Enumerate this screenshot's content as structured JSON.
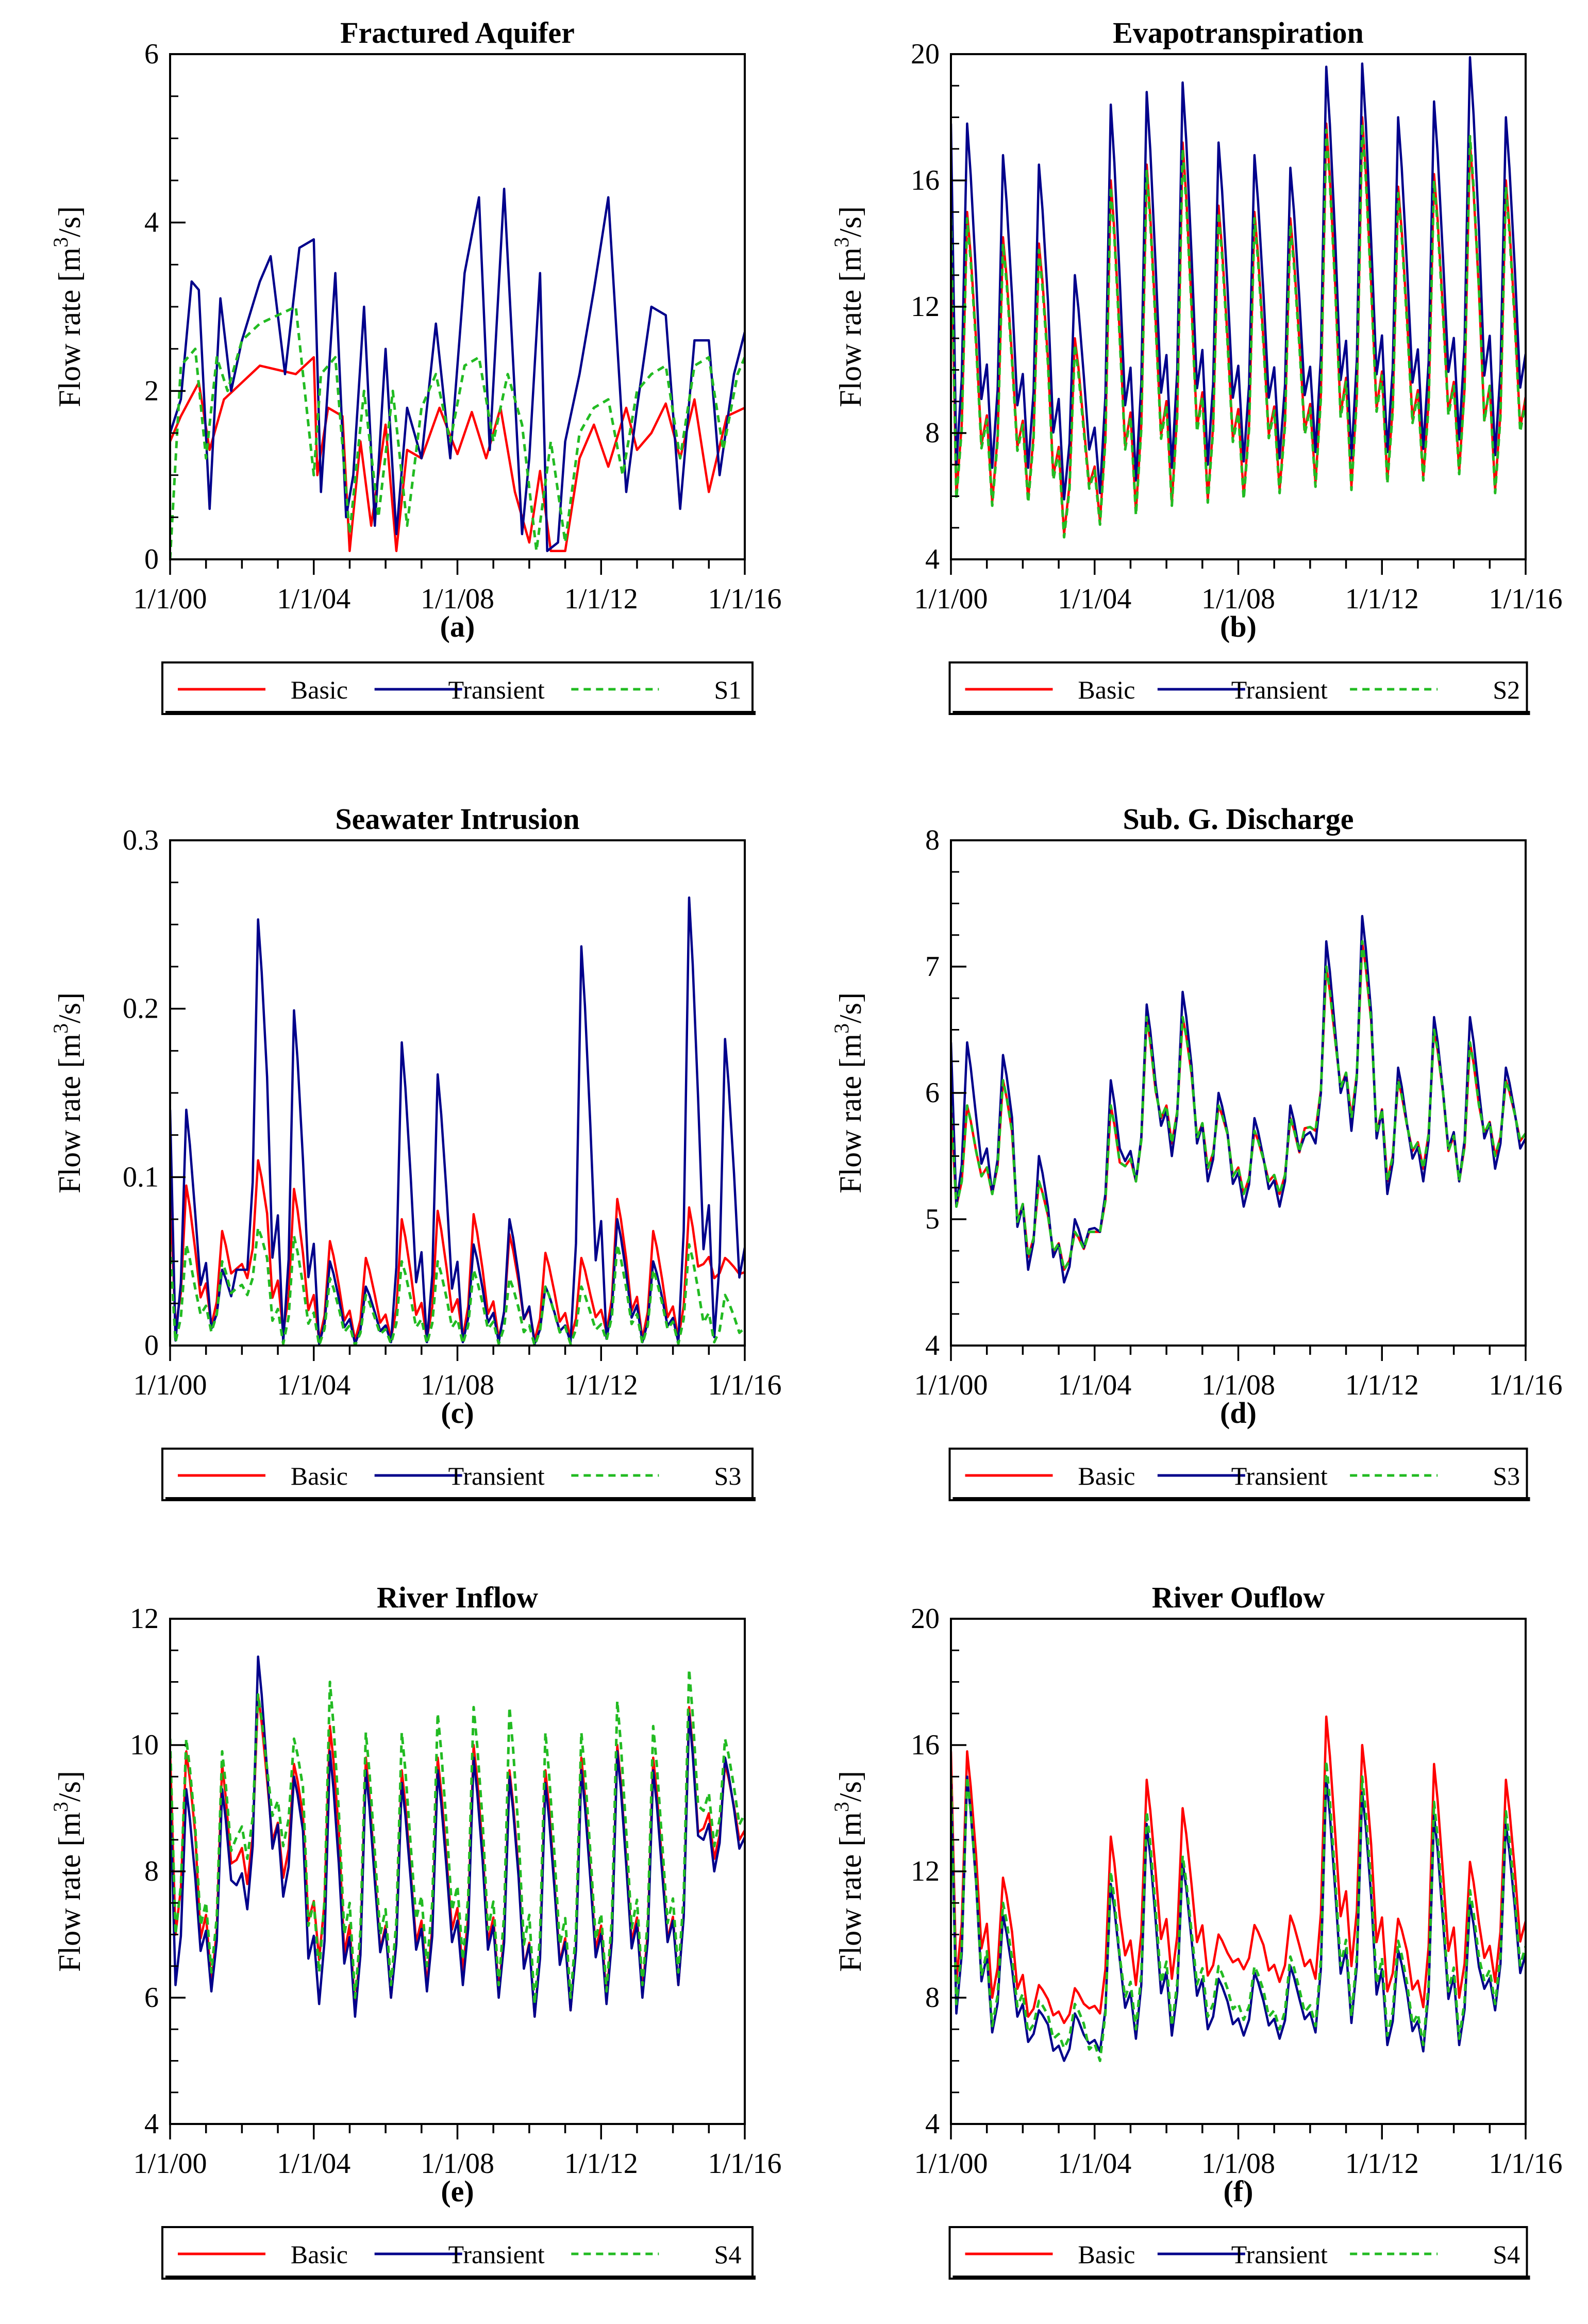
{
  "figure": {
    "time_ticks": [
      "1/1/00",
      "1/1/04",
      "1/1/08",
      "1/1/12",
      "1/1/16"
    ],
    "ylabel": "Flow rate [m3/s]",
    "ylabel_main": "Flow rate [m",
    "ylabel_sup": "3",
    "ylabel_tail": "/s]",
    "series_colors": {
      "Basic": "#ff0000",
      "Transient": "#00008b",
      "S": "#22bb22"
    }
  },
  "chart_data": [
    {
      "id": "a",
      "type": "line",
      "title": "Fractured Aquifer",
      "panel_label": "(a)",
      "xlabel": "",
      "ylabel": "Flow rate [m3/s]",
      "x_range": [
        "2000-01-01",
        "2016-01-01"
      ],
      "x_ticks": [
        "1/1/00",
        "1/1/04",
        "1/1/08",
        "1/1/12",
        "1/1/16"
      ],
      "ylim": [
        0,
        6
      ],
      "y_ticks": [
        "0",
        "2",
        "4",
        "6"
      ],
      "y_step": 2,
      "legend": [
        "Basic",
        "Transient",
        "S1"
      ],
      "legend_position": "bottom",
      "series": [
        {
          "name": "Basic",
          "x": [
            2000.0,
            2000.3,
            2000.8,
            2001.1,
            2001.5,
            2002.0,
            2002.5,
            2003.0,
            2003.5,
            2004.0,
            2004.1,
            2004.4,
            2004.8,
            2005.0,
            2005.3,
            2005.6,
            2006.0,
            2006.3,
            2006.6,
            2007.0,
            2007.5,
            2008.0,
            2008.4,
            2008.8,
            2009.2,
            2009.6,
            2010.0,
            2010.3,
            2010.6,
            2011.0,
            2011.4,
            2011.8,
            2012.2,
            2012.7,
            2013.0,
            2013.4,
            2013.8,
            2014.2,
            2014.6,
            2015.0,
            2015.5,
            2016.0
          ],
          "values": [
            1.4,
            1.7,
            2.1,
            1.3,
            1.9,
            2.1,
            2.3,
            2.25,
            2.2,
            2.4,
            1.0,
            1.8,
            1.7,
            0.1,
            1.4,
            0.4,
            1.6,
            0.1,
            1.3,
            1.2,
            1.8,
            1.25,
            1.75,
            1.2,
            1.8,
            0.8,
            0.2,
            1.05,
            0.1,
            0.1,
            1.2,
            1.6,
            1.1,
            1.8,
            1.3,
            1.5,
            1.85,
            1.2,
            1.9,
            0.8,
            1.7,
            1.8
          ]
        },
        {
          "name": "Transient",
          "x": [
            2000.0,
            2000.3,
            2000.6,
            2000.8,
            2001.1,
            2001.4,
            2001.7,
            2002.0,
            2002.5,
            2002.8,
            2003.2,
            2003.6,
            2004.0,
            2004.2,
            2004.6,
            2004.9,
            2005.1,
            2005.4,
            2005.7,
            2006.0,
            2006.3,
            2006.6,
            2007.0,
            2007.4,
            2007.8,
            2008.2,
            2008.6,
            2008.9,
            2009.3,
            2009.8,
            2010.0,
            2010.3,
            2010.5,
            2010.8,
            2011.0,
            2011.4,
            2011.8,
            2012.2,
            2012.7,
            2013.0,
            2013.4,
            2013.8,
            2014.2,
            2014.6,
            2015.0,
            2015.3,
            2015.7,
            2016.0
          ],
          "values": [
            1.5,
            1.9,
            3.3,
            3.2,
            0.6,
            3.1,
            2.0,
            2.6,
            3.3,
            3.6,
            2.2,
            3.7,
            3.8,
            0.8,
            3.4,
            0.5,
            1.0,
            3.0,
            0.4,
            2.5,
            0.3,
            1.8,
            1.2,
            2.8,
            1.2,
            3.4,
            4.3,
            1.3,
            4.4,
            0.3,
            1.2,
            3.4,
            0.1,
            0.2,
            1.4,
            2.2,
            3.2,
            4.3,
            0.8,
            1.8,
            3.0,
            2.9,
            0.6,
            2.6,
            2.6,
            1.0,
            2.2,
            2.7
          ]
        },
        {
          "name": "S1",
          "x": [
            2000.0,
            2000.3,
            2000.7,
            2001.0,
            2001.3,
            2001.6,
            2002.0,
            2002.5,
            2003.0,
            2003.5,
            2004.0,
            2004.2,
            2004.6,
            2005.0,
            2005.4,
            2005.8,
            2006.2,
            2006.6,
            2007.0,
            2007.4,
            2007.8,
            2008.2,
            2008.6,
            2009.0,
            2009.4,
            2009.8,
            2010.2,
            2010.6,
            2011.0,
            2011.4,
            2011.8,
            2012.2,
            2012.6,
            2013.0,
            2013.4,
            2013.8,
            2014.2,
            2014.6,
            2015.0,
            2015.4,
            2015.8,
            2016.0
          ],
          "values": [
            0.0,
            2.3,
            2.5,
            1.2,
            2.4,
            2.0,
            2.6,
            2.8,
            2.9,
            3.0,
            1.0,
            2.2,
            2.4,
            0.3,
            2.0,
            0.5,
            2.0,
            0.4,
            1.8,
            2.2,
            1.4,
            2.3,
            2.4,
            1.4,
            2.2,
            1.6,
            0.1,
            1.4,
            0.2,
            1.5,
            1.8,
            1.9,
            1.0,
            2.0,
            2.2,
            2.3,
            1.2,
            2.3,
            2.4,
            1.3,
            2.2,
            2.4
          ]
        }
      ]
    },
    {
      "id": "b",
      "type": "line",
      "title": "Evapotranspiration",
      "panel_label": "(b)",
      "xlabel": "",
      "ylabel": "Flow rate [m3/s]",
      "x_range": [
        "2000-01-01",
        "2016-01-01"
      ],
      "x_ticks": [
        "1/1/00",
        "1/1/04",
        "1/1/08",
        "1/1/12",
        "1/1/16"
      ],
      "ylim": [
        4,
        20
      ],
      "y_ticks": [
        "4",
        "8",
        "12",
        "16",
        "20"
      ],
      "y_step": 4,
      "legend": [
        "Basic",
        "Transient",
        "S2"
      ],
      "legend_position": "bottom",
      "pattern": "seasonal",
      "series": [
        {
          "name": "Basic",
          "peaks": [
            15.0,
            14.2,
            14.0,
            11.0,
            16.0,
            16.5,
            17.2,
            15.2,
            15.0,
            14.8,
            17.8,
            18.0,
            15.8,
            16.2,
            17.2,
            16.0
          ],
          "troughs": [
            6.0,
            5.8,
            5.9,
            4.8,
            5.2,
            5.5,
            5.8,
            5.9,
            6.0,
            6.2,
            6.4,
            6.3,
            6.5,
            6.6,
            6.8,
            6.2
          ]
        },
        {
          "name": "Transient",
          "peaks": [
            17.8,
            16.8,
            16.5,
            13.0,
            18.4,
            18.8,
            19.1,
            17.2,
            16.8,
            16.4,
            19.6,
            19.7,
            18.0,
            18.5,
            19.9,
            18.0
          ],
          "troughs": [
            7.0,
            6.9,
            6.9,
            5.9,
            6.1,
            6.5,
            6.9,
            7.0,
            7.1,
            7.2,
            7.4,
            7.2,
            7.4,
            7.5,
            7.8,
            7.3
          ]
        },
        {
          "name": "S2",
          "peaks": [
            14.8,
            14.0,
            13.8,
            10.8,
            15.8,
            16.3,
            17.0,
            15.0,
            14.8,
            14.6,
            17.6,
            17.8,
            15.6,
            16.0,
            17.4,
            15.8
          ],
          "troughs": [
            5.9,
            5.7,
            5.8,
            4.7,
            5.1,
            5.4,
            5.7,
            5.8,
            5.9,
            6.1,
            6.3,
            6.2,
            6.4,
            6.5,
            6.7,
            6.1
          ]
        }
      ]
    },
    {
      "id": "c",
      "type": "line",
      "title": "Seawater Intrusion",
      "panel_label": "(c)",
      "xlabel": "",
      "ylabel": "Flow rate [m3/s]",
      "x_range": [
        "2000-01-01",
        "2016-01-01"
      ],
      "x_ticks": [
        "1/1/00",
        "1/1/04",
        "1/1/08",
        "1/1/12",
        "1/1/16"
      ],
      "ylim": [
        0,
        0.3
      ],
      "y_ticks": [
        "0",
        "0.1",
        "0.2",
        "0.3"
      ],
      "y_step": 0.1,
      "legend": [
        "Basic",
        "Transient",
        "S3"
      ],
      "legend_position": "bottom",
      "pattern": "seasonal",
      "series": [
        {
          "name": "Basic",
          "peaks": [
            0.095,
            0.068,
            0.11,
            0.093,
            0.062,
            0.052,
            0.075,
            0.08,
            0.078,
            0.066,
            0.055,
            0.052,
            0.087,
            0.068,
            0.082,
            0.052
          ],
          "troughs": [
            0.01,
            0.012,
            0.04,
            0.008,
            0.003,
            0.003,
            0.004,
            0.004,
            0.005,
            0.004,
            0.003,
            0.004,
            0.008,
            0.004,
            0.004,
            0.04
          ]
        },
        {
          "name": "Transient",
          "peaks": [
            0.14,
            0.045,
            0.253,
            0.199,
            0.05,
            0.035,
            0.18,
            0.161,
            0.06,
            0.075,
            0.035,
            0.237,
            0.075,
            0.05,
            0.266,
            0.182
          ],
          "troughs": [
            0.003,
            0.01,
            0.045,
            0.002,
            0.001,
            0.001,
            0.002,
            0.002,
            0.002,
            0.002,
            0.001,
            0.002,
            0.004,
            0.002,
            0.002,
            0.005
          ]
        },
        {
          "name": "S3",
          "peaks": [
            0.06,
            0.05,
            0.07,
            0.065,
            0.04,
            0.03,
            0.05,
            0.05,
            0.045,
            0.04,
            0.035,
            0.035,
            0.06,
            0.045,
            0.06,
            0.03
          ],
          "troughs": [
            0.002,
            0.008,
            0.03,
            0.001,
            0.0,
            0.0,
            0.001,
            0.001,
            0.001,
            0.001,
            0.0,
            0.001,
            0.003,
            0.001,
            0.001,
            0.002
          ]
        }
      ]
    },
    {
      "id": "d",
      "type": "line",
      "title": "Sub. G. Discharge",
      "panel_label": "(d)",
      "xlabel": "",
      "ylabel": "Flow rate [m3/s]",
      "x_range": [
        "2000-01-01",
        "2016-01-01"
      ],
      "x_ticks": [
        "1/1/00",
        "1/1/04",
        "1/1/08",
        "1/1/12",
        "1/1/16"
      ],
      "ylim": [
        4,
        8
      ],
      "y_ticks": [
        "4",
        "5",
        "6",
        "7",
        "8"
      ],
      "y_step": 1,
      "legend": [
        "Basic",
        "Transient",
        "S3"
      ],
      "legend_position": "bottom",
      "pattern": "seasonal",
      "series": [
        {
          "name": "Basic",
          "peaks": [
            5.9,
            6.1,
            5.3,
            4.9,
            5.9,
            6.6,
            6.6,
            5.9,
            5.7,
            5.8,
            7.0,
            7.2,
            6.1,
            6.5,
            6.4,
            6.1
          ],
          "troughs": [
            5.1,
            5.2,
            4.7,
            4.6,
            4.9,
            5.3,
            5.6,
            5.4,
            5.2,
            5.2,
            5.7,
            5.8,
            5.3,
            5.4,
            5.3,
            5.5
          ]
        },
        {
          "name": "Transient",
          "peaks": [
            6.4,
            6.3,
            5.5,
            5.0,
            6.1,
            6.7,
            6.8,
            6.0,
            5.8,
            5.9,
            7.2,
            7.4,
            6.2,
            6.6,
            6.6,
            6.2
          ],
          "troughs": [
            5.1,
            5.2,
            4.6,
            4.5,
            4.9,
            5.3,
            5.5,
            5.3,
            5.1,
            5.1,
            5.6,
            5.7,
            5.2,
            5.3,
            5.3,
            5.4
          ]
        },
        {
          "name": "S3",
          "peaks": [
            5.9,
            6.1,
            5.3,
            4.9,
            5.9,
            6.6,
            6.6,
            5.9,
            5.7,
            5.8,
            7.0,
            7.2,
            6.1,
            6.5,
            6.4,
            6.1
          ],
          "troughs": [
            5.1,
            5.2,
            4.7,
            4.6,
            4.9,
            5.3,
            5.6,
            5.4,
            5.2,
            5.2,
            5.7,
            5.8,
            5.3,
            5.4,
            5.3,
            5.5
          ]
        }
      ]
    },
    {
      "id": "e",
      "type": "line",
      "title": "River Inflow",
      "panel_label": "(e)",
      "xlabel": "",
      "ylabel": "Flow rate [m3/s]",
      "x_range": [
        "2000-01-01",
        "2016-01-01"
      ],
      "x_ticks": [
        "1/1/00",
        "1/1/04",
        "1/1/08",
        "1/1/12",
        "1/1/16"
      ],
      "ylim": [
        4,
        12
      ],
      "y_ticks": [
        "4",
        "6",
        "8",
        "10",
        "12"
      ],
      "y_step": 2,
      "legend": [
        "Basic",
        "Transient",
        "S4"
      ],
      "legend_position": "bottom",
      "pattern": "seasonal",
      "series": [
        {
          "name": "Basic",
          "peaks": [
            9.9,
            9.7,
            10.8,
            9.7,
            10.3,
            9.8,
            9.6,
            9.8,
            10.0,
            9.6,
            9.6,
            9.8,
            10.0,
            9.8,
            10.6,
            9.7
          ],
          "troughs": [
            7.0,
            6.2,
            7.8,
            7.9,
            6.6,
            5.8,
            6.0,
            6.2,
            6.4,
            6.1,
            5.7,
            5.8,
            6.0,
            6.1,
            6.2,
            8.2
          ]
        },
        {
          "name": "Transient",
          "peaks": [
            9.3,
            9.3,
            11.4,
            9.5,
            9.9,
            9.6,
            9.4,
            9.6,
            9.8,
            9.5,
            9.4,
            9.6,
            9.9,
            9.6,
            10.5,
            9.8
          ],
          "troughs": [
            6.2,
            6.1,
            7.4,
            7.6,
            5.9,
            5.7,
            6.0,
            6.1,
            6.2,
            6.0,
            5.7,
            5.8,
            5.9,
            6.0,
            6.2,
            8.0
          ]
        },
        {
          "name": "S4",
          "peaks": [
            10.1,
            9.9,
            10.8,
            10.1,
            11.0,
            10.2,
            10.2,
            10.5,
            10.6,
            10.6,
            10.2,
            10.2,
            10.7,
            10.3,
            11.2,
            10.1
          ],
          "troughs": [
            7.0,
            6.4,
            8.2,
            8.4,
            6.4,
            6.0,
            6.2,
            6.5,
            6.6,
            6.2,
            5.9,
            6.0,
            6.1,
            6.2,
            6.4,
            8.4
          ]
        }
      ]
    },
    {
      "id": "f",
      "type": "line",
      "title": "River Ouflow",
      "panel_label": "(f)",
      "xlabel": "",
      "ylabel": "Flow rate [m3/s]",
      "x_range": [
        "2000-01-01",
        "2016-01-01"
      ],
      "x_ticks": [
        "1/1/00",
        "1/1/04",
        "1/1/08",
        "1/1/12",
        "1/1/16"
      ],
      "ylim": [
        4,
        20
      ],
      "y_ticks": [
        "4",
        "8",
        "12",
        "16",
        "20"
      ],
      "y_step": 4,
      "legend": [
        "Basic",
        "Transient",
        "S4"
      ],
      "legend_position": "bottom",
      "pattern": "seasonal",
      "series": [
        {
          "name": "Basic",
          "peaks": [
            15.8,
            11.8,
            8.4,
            8.3,
            13.1,
            14.9,
            14.0,
            10.0,
            10.3,
            10.6,
            16.9,
            16.0,
            10.5,
            15.4,
            12.3,
            14.9
          ],
          "troughs": [
            8.5,
            8.0,
            7.4,
            7.2,
            7.5,
            8.4,
            8.6,
            8.7,
            8.9,
            8.5,
            8.6,
            9.0,
            8.2,
            7.7,
            8.0,
            8.5
          ]
        },
        {
          "name": "Transient",
          "peaks": [
            15.0,
            10.6,
            7.6,
            7.5,
            11.6,
            13.5,
            12.3,
            8.6,
            8.8,
            9.0,
            15.0,
            14.5,
            9.5,
            13.8,
            11.0,
            13.5
          ],
          "troughs": [
            7.5,
            6.9,
            6.6,
            6.0,
            6.3,
            6.7,
            6.8,
            7.0,
            6.8,
            6.7,
            6.9,
            7.2,
            6.5,
            6.3,
            6.5,
            7.6
          ]
        },
        {
          "name": "S4",
          "peaks": [
            15.0,
            11.0,
            7.9,
            7.8,
            12.0,
            13.9,
            12.5,
            9.0,
            9.0,
            9.3,
            15.5,
            15.0,
            9.8,
            14.2,
            11.4,
            13.9
          ],
          "troughs": [
            7.8,
            7.1,
            6.9,
            6.4,
            6.0,
            7.0,
            7.1,
            7.4,
            7.3,
            7.0,
            7.1,
            7.4,
            6.8,
            6.5,
            6.7,
            7.8
          ]
        }
      ]
    }
  ]
}
